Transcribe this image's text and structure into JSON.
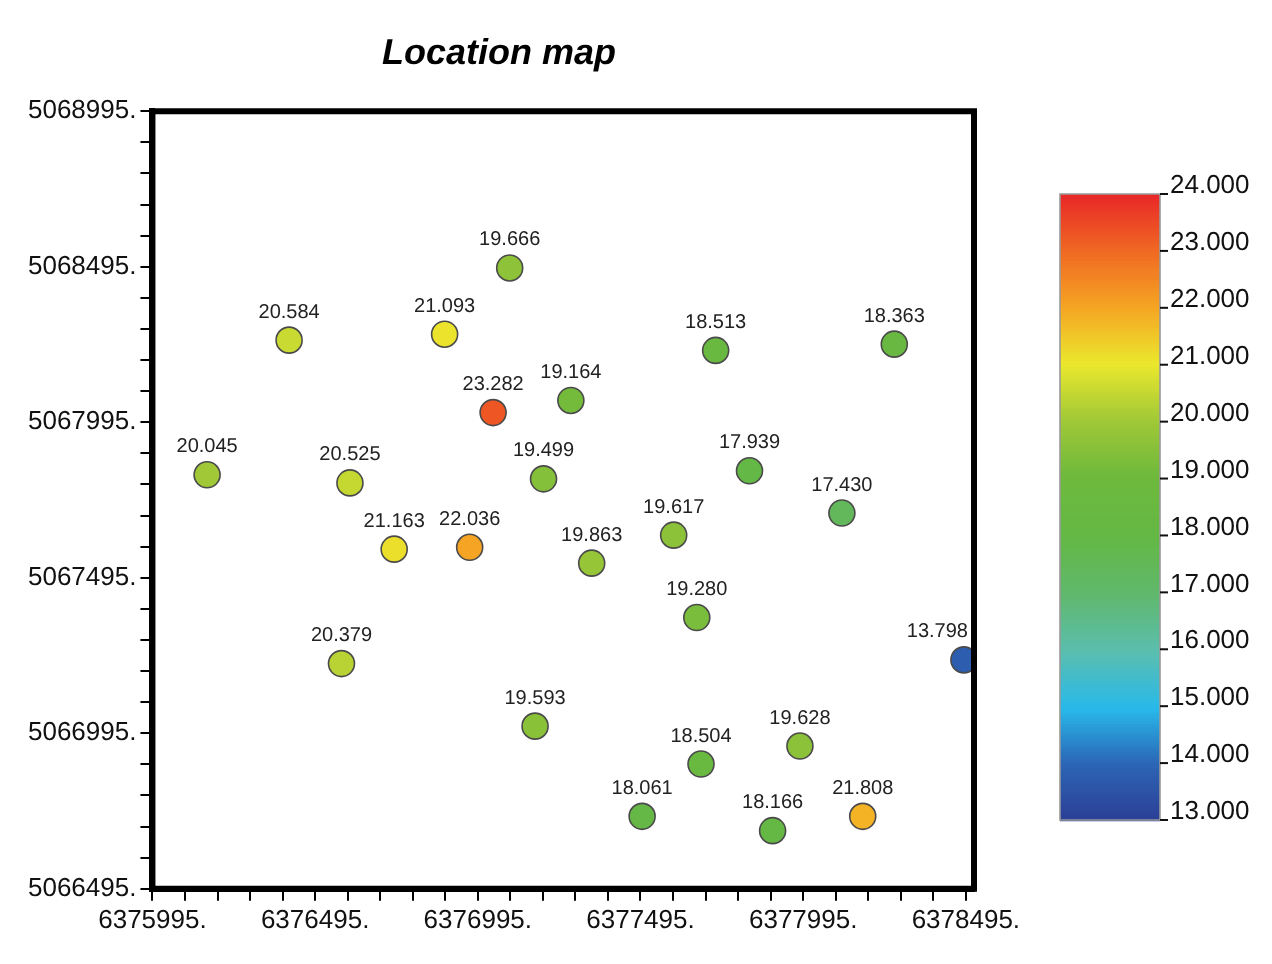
{
  "chart_data": {
    "type": "scatter",
    "title": "Location map",
    "x": [
      6377093,
      6376415,
      6376893,
      6377042,
      6377281,
      6377726,
      6378275,
      6376163,
      6376602,
      6377197,
      6377830,
      6378114,
      6376738,
      6376970,
      6377345,
      6377597,
      6377668,
      6378489,
      6376576,
      6377171,
      6377985,
      6377681,
      6377500,
      6377901,
      6378178
    ],
    "values": [
      5068491,
      5068259,
      5068278,
      5068026,
      5068065,
      5068226,
      5068246,
      5067826,
      5067800,
      5067813,
      5067839,
      5067703,
      5067587,
      5067593,
      5067542,
      5067632,
      5067367,
      5067231,
      5067219,
      5067018,
      5066954,
      5066896,
      5066728,
      5066682,
      5066728
    ],
    "cvalues": [
      19.666,
      20.584,
      21.093,
      23.282,
      19.164,
      18.513,
      18.363,
      20.045,
      20.525,
      19.499,
      17.939,
      17.43,
      21.163,
      22.036,
      19.863,
      19.617,
      19.28,
      13.798,
      20.379,
      19.593,
      19.628,
      18.504,
      18.061,
      18.166,
      21.808
    ],
    "annotations": [
      {
        "text": "19.666",
        "x": 6377093,
        "y": 5068491
      },
      {
        "text": "20.584",
        "x": 6376415,
        "y": 5068259
      },
      {
        "text": "21.093",
        "x": 6376893,
        "y": 5068278
      },
      {
        "text": "23.282",
        "x": 6377042,
        "y": 5068026
      },
      {
        "text": "19.164",
        "x": 6377281,
        "y": 5068065
      },
      {
        "text": "18.513",
        "x": 6377726,
        "y": 5068226
      },
      {
        "text": "18.363",
        "x": 6378275,
        "y": 5068246
      },
      {
        "text": "20.045",
        "x": 6376163,
        "y": 5067826
      },
      {
        "text": "20.525",
        "x": 6376602,
        "y": 5067800
      },
      {
        "text": "19.499",
        "x": 6377197,
        "y": 5067813
      },
      {
        "text": "17.939",
        "x": 6377830,
        "y": 5067839
      },
      {
        "text": "17.430",
        "x": 6378114,
        "y": 5067703
      },
      {
        "text": "21.163",
        "x": 6376738,
        "y": 5067587
      },
      {
        "text": "22.036",
        "x": 6376970,
        "y": 5067593
      },
      {
        "text": "19.863",
        "x": 6377345,
        "y": 5067542
      },
      {
        "text": "19.617",
        "x": 6377597,
        "y": 5067632
      },
      {
        "text": "19.280",
        "x": 6377668,
        "y": 5067367
      },
      {
        "text": "13.798",
        "x": 6378489,
        "y": 5067231
      },
      {
        "text": "20.379",
        "x": 6376576,
        "y": 5067219
      },
      {
        "text": "19.593",
        "x": 6377171,
        "y": 5067018
      },
      {
        "text": "19.628",
        "x": 6377985,
        "y": 5066954
      },
      {
        "text": "18.504",
        "x": 6377681,
        "y": 5066896
      },
      {
        "text": "18.061",
        "x": 6377500,
        "y": 5066728
      },
      {
        "text": "18.166",
        "x": 6377901,
        "y": 5066682
      },
      {
        "text": "21.808",
        "x": 6378178,
        "y": 5066728
      }
    ],
    "marker": "circle",
    "xlim": [
      6375995,
      6378520
    ],
    "ylim": [
      5066495,
      5068995
    ],
    "xticks": [
      {
        "value": 6375995,
        "label": "6375995."
      },
      {
        "value": 6376095,
        "label": null
      },
      {
        "value": 6376195,
        "label": null
      },
      {
        "value": 6376295,
        "label": null
      },
      {
        "value": 6376395,
        "label": null
      },
      {
        "value": 6376495,
        "label": "6376495."
      },
      {
        "value": 6376595,
        "label": null
      },
      {
        "value": 6376695,
        "label": null
      },
      {
        "value": 6376795,
        "label": null
      },
      {
        "value": 6376895,
        "label": null
      },
      {
        "value": 6376995,
        "label": "6376995."
      },
      {
        "value": 6377095,
        "label": null
      },
      {
        "value": 6377195,
        "label": null
      },
      {
        "value": 6377295,
        "label": null
      },
      {
        "value": 6377395,
        "label": null
      },
      {
        "value": 6377495,
        "label": "6377495."
      },
      {
        "value": 6377595,
        "label": null
      },
      {
        "value": 6377695,
        "label": null
      },
      {
        "value": 6377795,
        "label": null
      },
      {
        "value": 6377895,
        "label": null
      },
      {
        "value": 6377995,
        "label": "6377995."
      },
      {
        "value": 6378095,
        "label": null
      },
      {
        "value": 6378195,
        "label": null
      },
      {
        "value": 6378295,
        "label": null
      },
      {
        "value": 6378395,
        "label": null
      },
      {
        "value": 6378495,
        "label": "6378495."
      }
    ],
    "yticks": [
      {
        "value": 5066495,
        "label": "5066495."
      },
      {
        "value": 5066595,
        "label": null
      },
      {
        "value": 5066695,
        "label": null
      },
      {
        "value": 5066795,
        "label": null
      },
      {
        "value": 5066895,
        "label": null
      },
      {
        "value": 5066995,
        "label": "5066995."
      },
      {
        "value": 5067095,
        "label": null
      },
      {
        "value": 5067195,
        "label": null
      },
      {
        "value": 5067295,
        "label": null
      },
      {
        "value": 5067395,
        "label": null
      },
      {
        "value": 5067495,
        "label": "5067495."
      },
      {
        "value": 5067595,
        "label": null
      },
      {
        "value": 5067695,
        "label": null
      },
      {
        "value": 5067795,
        "label": null
      },
      {
        "value": 5067895,
        "label": null
      },
      {
        "value": 5067995,
        "label": "5067995."
      },
      {
        "value": 5068095,
        "label": null
      },
      {
        "value": 5068195,
        "label": null
      },
      {
        "value": 5068295,
        "label": null
      },
      {
        "value": 5068395,
        "label": null
      },
      {
        "value": 5068495,
        "label": "5068495."
      },
      {
        "value": 5068595,
        "label": null
      },
      {
        "value": 5068695,
        "label": null
      },
      {
        "value": 5068795,
        "label": null
      },
      {
        "value": 5068895,
        "label": null
      },
      {
        "value": 5068995,
        "label": "5068995."
      }
    ],
    "clim": [
      13,
      24
    ],
    "cticks": [
      {
        "value": 13,
        "label": "13.000"
      },
      {
        "value": 14,
        "label": "14.000"
      },
      {
        "value": 15,
        "label": "15.000"
      },
      {
        "value": 16,
        "label": "16.000"
      },
      {
        "value": 17,
        "label": "17.000"
      },
      {
        "value": 18,
        "label": "18.000"
      },
      {
        "value": 19,
        "label": "19.000"
      },
      {
        "value": 20,
        "label": "20.000"
      },
      {
        "value": 21,
        "label": "21.000"
      },
      {
        "value": 22,
        "label": "22.000"
      },
      {
        "value": 23,
        "label": "23.000"
      },
      {
        "value": 24,
        "label": "24.000"
      }
    ],
    "grid": false,
    "legend": false
  }
}
